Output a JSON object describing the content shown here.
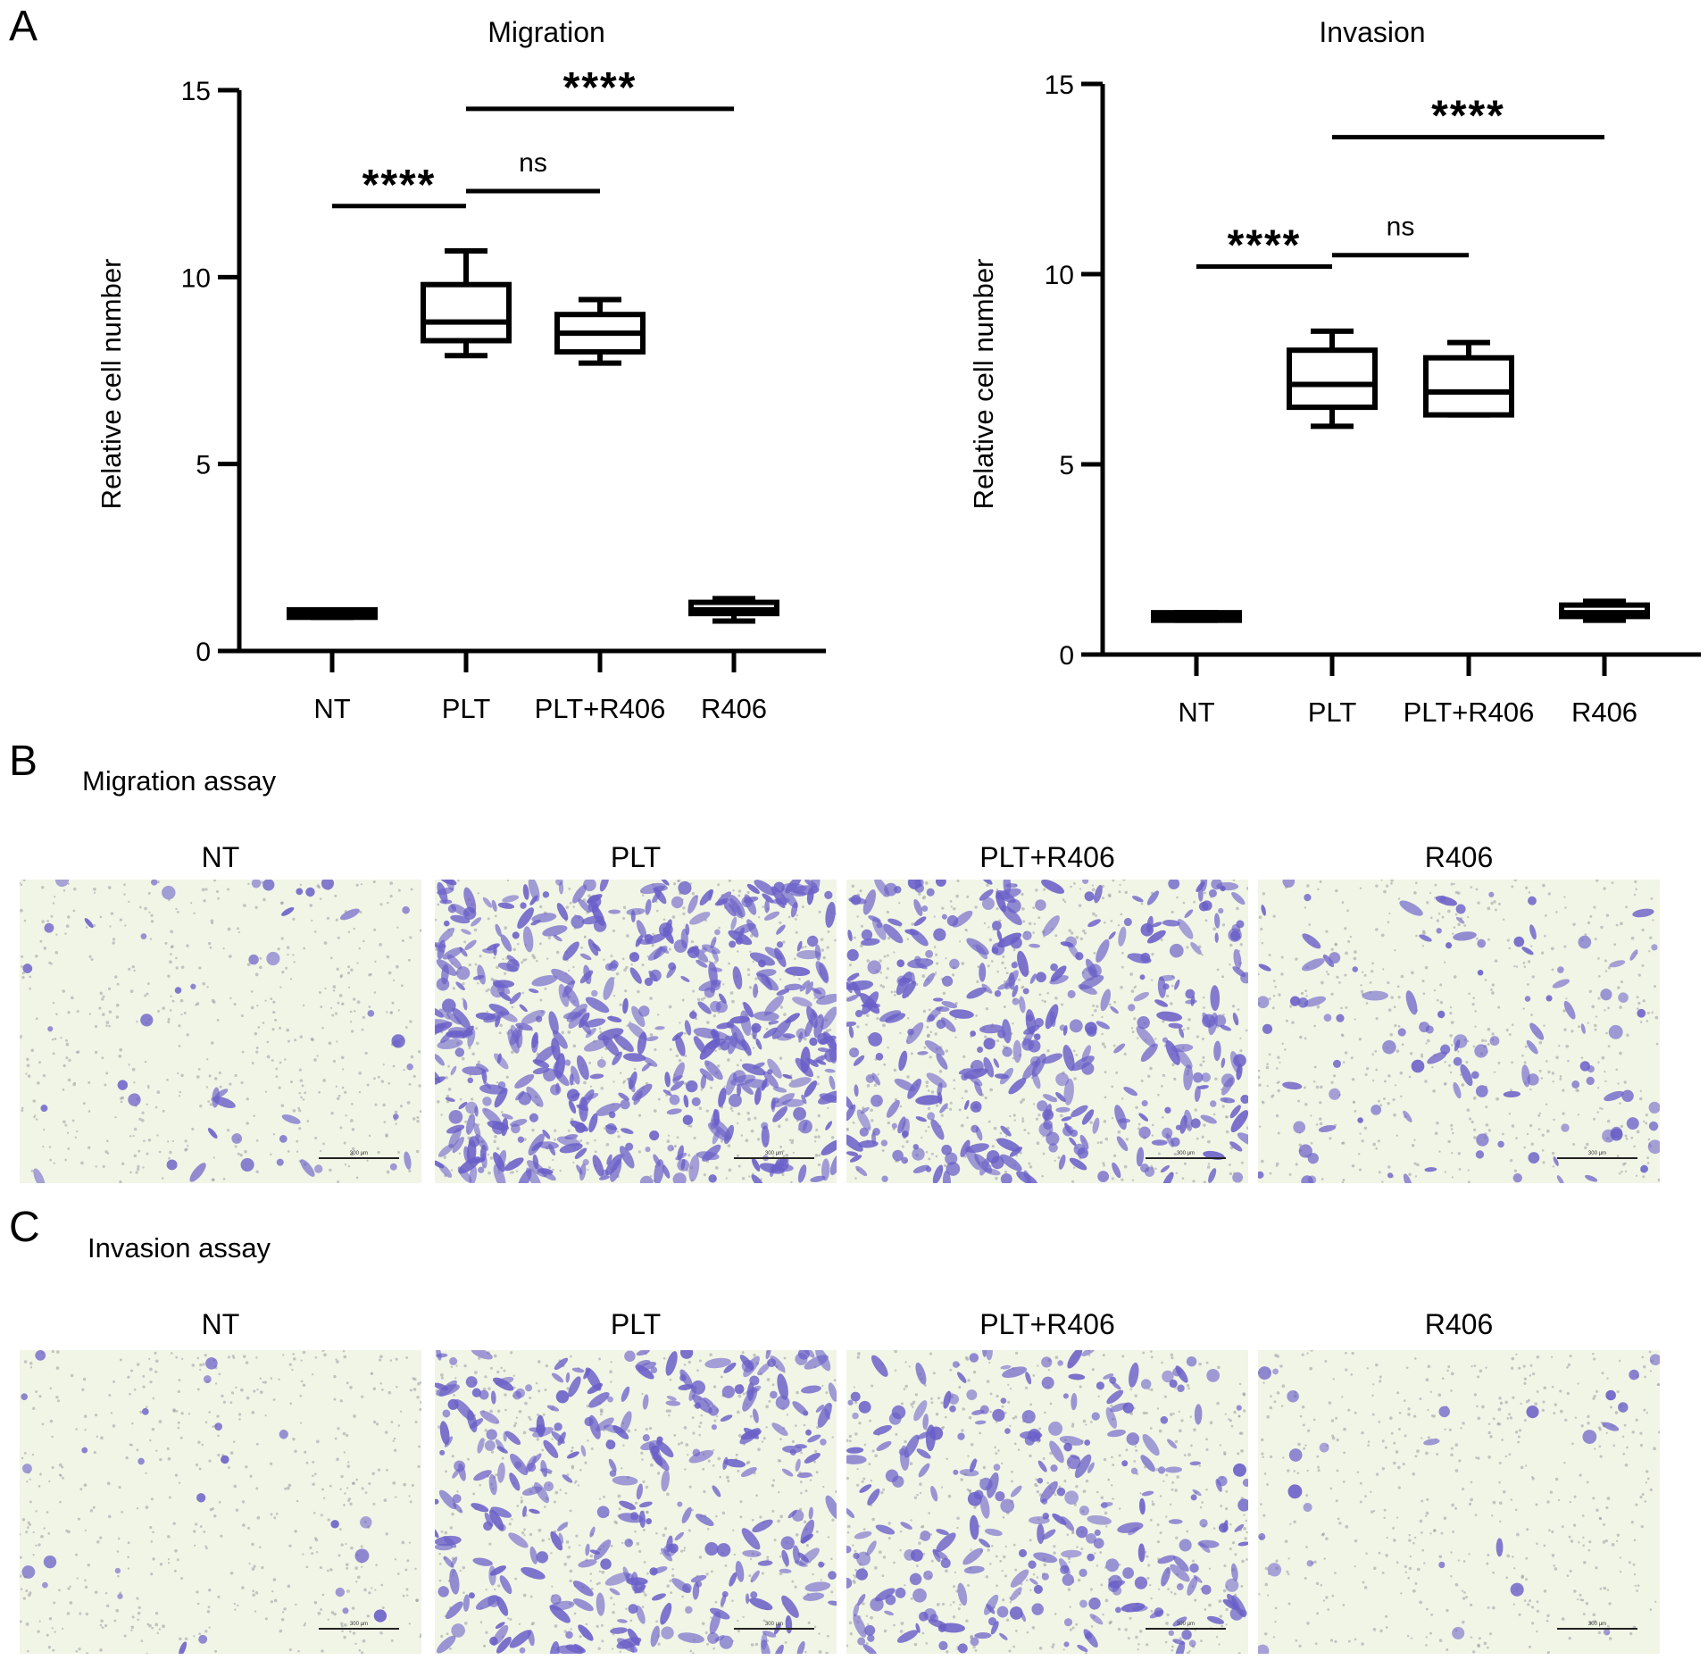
{
  "panels": {
    "a": "A",
    "b": "B",
    "c": "C"
  },
  "chart_data": [
    {
      "type": "box",
      "title": "Migration",
      "ylabel": "Relative cell number",
      "xlabel": "",
      "ylim": [
        0,
        15
      ],
      "yticks": [
        "0",
        "5",
        "10",
        "15"
      ],
      "categories": [
        "NT",
        "PLT",
        "PLT+R406",
        "R406"
      ],
      "boxes": [
        {
          "min": 0.9,
          "q1": 0.9,
          "median": 1.0,
          "q3": 1.1,
          "max": 1.1
        },
        {
          "min": 7.9,
          "q1": 8.3,
          "median": 8.8,
          "q3": 9.8,
          "max": 10.7
        },
        {
          "min": 7.7,
          "q1": 8.0,
          "median": 8.5,
          "q3": 9.0,
          "max": 9.4
        },
        {
          "min": 0.8,
          "q1": 1.0,
          "median": 1.1,
          "q3": 1.3,
          "max": 1.4
        }
      ],
      "comparisons": [
        {
          "from": "NT",
          "to": "PLT",
          "y": 11.9,
          "label": "****"
        },
        {
          "from": "PLT",
          "to": "PLT+R406",
          "y": 12.3,
          "label": "ns"
        },
        {
          "from": "PLT",
          "to": "R406",
          "y": 14.5,
          "label": "****"
        }
      ]
    },
    {
      "type": "box",
      "title": "Invasion",
      "ylabel": "Relative cell number",
      "xlabel": "",
      "ylim": [
        0,
        15
      ],
      "yticks": [
        "0",
        "5",
        "10",
        "15"
      ],
      "categories": [
        "NT",
        "PLT",
        "PLT+R406",
        "R406"
      ],
      "boxes": [
        {
          "min": 0.9,
          "q1": 0.9,
          "median": 1.0,
          "q3": 1.1,
          "max": 1.1
        },
        {
          "min": 6.0,
          "q1": 6.5,
          "median": 7.1,
          "q3": 8.0,
          "max": 8.5
        },
        {
          "min": 6.3,
          "q1": 6.3,
          "median": 6.9,
          "q3": 7.8,
          "max": 8.2
        },
        {
          "min": 0.9,
          "q1": 1.0,
          "median": 1.1,
          "q3": 1.3,
          "max": 1.4
        }
      ],
      "comparisons": [
        {
          "from": "NT",
          "to": "PLT",
          "y": 10.2,
          "label": "****"
        },
        {
          "from": "PLT",
          "to": "PLT+R406",
          "y": 10.5,
          "label": "ns"
        },
        {
          "from": "PLT",
          "to": "R406",
          "y": 13.6,
          "label": "****"
        }
      ]
    }
  ],
  "micrographs": {
    "migration": {
      "title": "Migration assay",
      "images": [
        {
          "label": "NT",
          "density": 45,
          "clump": 0.2
        },
        {
          "label": "PLT",
          "density": 520,
          "clump": 0.8
        },
        {
          "label": "PLT+R406",
          "density": 380,
          "clump": 0.6
        },
        {
          "label": "R406",
          "density": 110,
          "clump": 0.3
        }
      ]
    },
    "invasion": {
      "title": "Invasion assay",
      "images": [
        {
          "label": "NT",
          "density": 25,
          "clump": 0.1
        },
        {
          "label": "PLT",
          "density": 320,
          "clump": 0.7
        },
        {
          "label": "PLT+R406",
          "density": 270,
          "clump": 0.5
        },
        {
          "label": "R406",
          "density": 25,
          "clump": 0.1
        }
      ]
    },
    "scale_bar_text": "300 μm",
    "colors": {
      "background": "#f1f5e6",
      "cell": "#6a5fc8",
      "dot": "#9a9aa0"
    }
  }
}
